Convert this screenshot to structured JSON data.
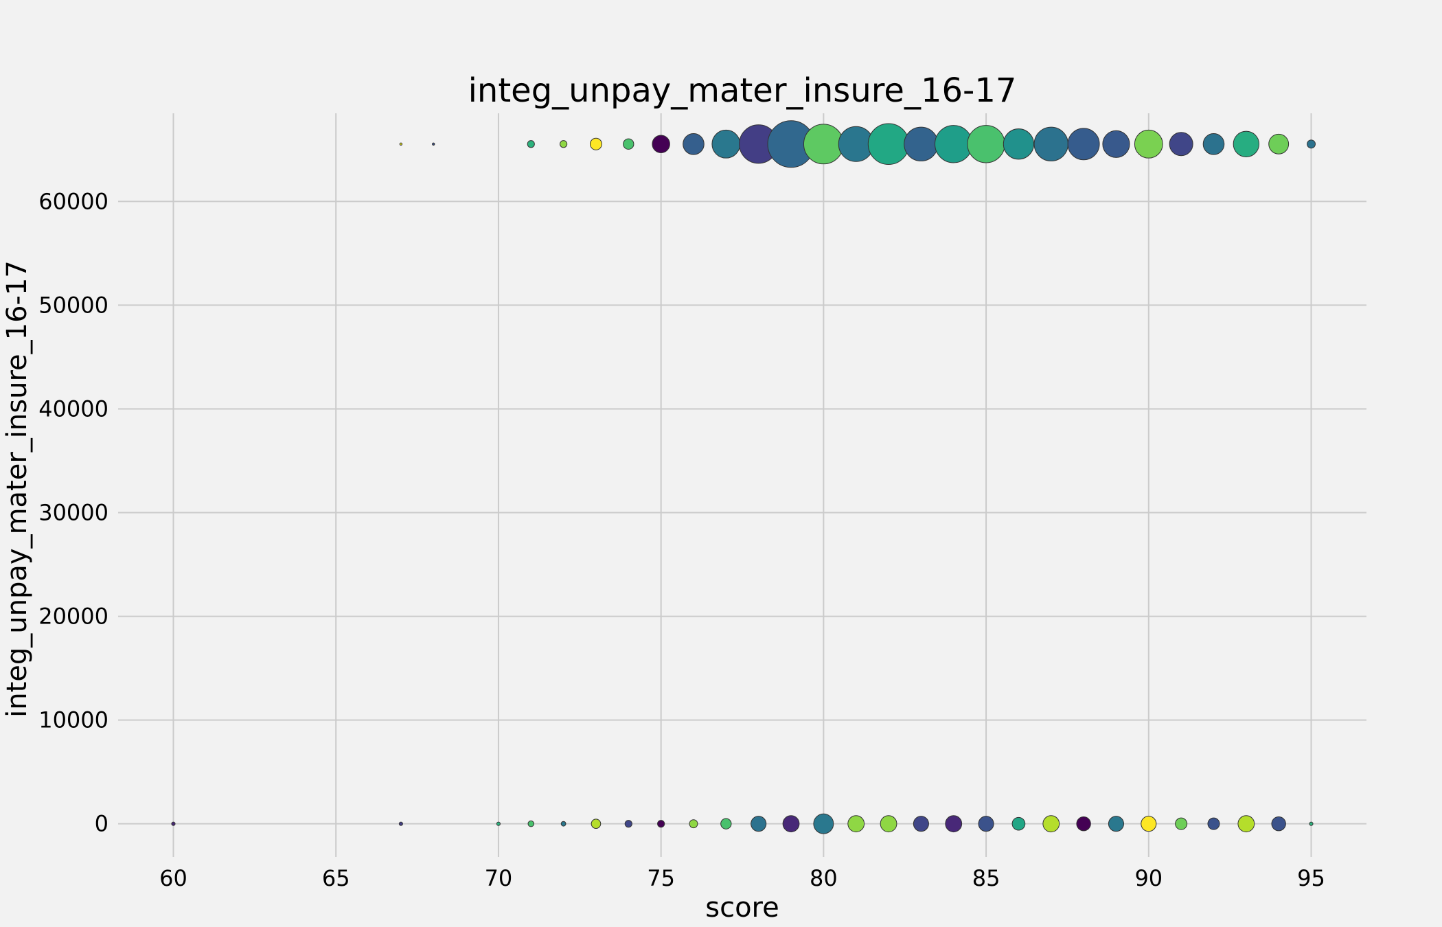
{
  "chart_data": {
    "type": "scatter",
    "title": "integ_unpay_mater_insure_16-17",
    "xlabel": "score",
    "ylabel": "integ_unpay_mater_insure_16-17",
    "xlim": [
      58.3,
      96.7
    ],
    "ylim": [
      -3200,
      68500
    ],
    "xticks": [
      60,
      65,
      70,
      75,
      80,
      85,
      90,
      95
    ],
    "yticks": [
      0,
      10000,
      20000,
      30000,
      40000,
      50000,
      60000
    ],
    "grid": true,
    "legend": "none",
    "colormap": "viridis",
    "series": [
      {
        "y": 65535,
        "points": [
          {
            "x": 67,
            "size": 2,
            "color": "#e6e419"
          },
          {
            "x": 68,
            "size": 2,
            "color": "#3b528b"
          },
          {
            "x": 71,
            "size": 6,
            "color": "#2db27d"
          },
          {
            "x": 72,
            "size": 6,
            "color": "#8fd744"
          },
          {
            "x": 73,
            "size": 10,
            "color": "#fde725"
          },
          {
            "x": 74,
            "size": 9,
            "color": "#4ac16d"
          },
          {
            "x": 75,
            "size": 15,
            "color": "#440154"
          },
          {
            "x": 76,
            "size": 18,
            "color": "#355f8d"
          },
          {
            "x": 77,
            "size": 24,
            "color": "#2a788e"
          },
          {
            "x": 78,
            "size": 33,
            "color": "#433e85"
          },
          {
            "x": 79,
            "size": 40,
            "color": "#31688e"
          },
          {
            "x": 80,
            "size": 34,
            "color": "#5ec962"
          },
          {
            "x": 81,
            "size": 30,
            "color": "#2a768e"
          },
          {
            "x": 82,
            "size": 35,
            "color": "#22a884"
          },
          {
            "x": 83,
            "size": 29,
            "color": "#33638d"
          },
          {
            "x": 84,
            "size": 32,
            "color": "#1f9e89"
          },
          {
            "x": 85,
            "size": 32,
            "color": "#4ac16d"
          },
          {
            "x": 86,
            "size": 26,
            "color": "#21918c"
          },
          {
            "x": 87,
            "size": 29,
            "color": "#2c728e"
          },
          {
            "x": 88,
            "size": 27,
            "color": "#365c8d"
          },
          {
            "x": 89,
            "size": 23,
            "color": "#38598c"
          },
          {
            "x": 90,
            "size": 24,
            "color": "#7ad151"
          },
          {
            "x": 91,
            "size": 20,
            "color": "#404688"
          },
          {
            "x": 92,
            "size": 18,
            "color": "#2c728e"
          },
          {
            "x": 93,
            "size": 22,
            "color": "#27ad81"
          },
          {
            "x": 94,
            "size": 17,
            "color": "#6ece58"
          },
          {
            "x": 95,
            "size": 7,
            "color": "#2c728e"
          }
        ]
      },
      {
        "y": 0,
        "points": [
          {
            "x": 60,
            "size": 3,
            "color": "#482878"
          },
          {
            "x": 67,
            "size": 3,
            "color": "#433e85"
          },
          {
            "x": 70,
            "size": 3,
            "color": "#2db27d"
          },
          {
            "x": 71,
            "size": 5,
            "color": "#4ac16d"
          },
          {
            "x": 72,
            "size": 4,
            "color": "#2a788e"
          },
          {
            "x": 73,
            "size": 8,
            "color": "#b5de2b"
          },
          {
            "x": 74,
            "size": 6,
            "color": "#404688"
          },
          {
            "x": 75,
            "size": 6,
            "color": "#440154"
          },
          {
            "x": 76,
            "size": 7,
            "color": "#8fd744"
          },
          {
            "x": 77,
            "size": 9,
            "color": "#4ac16d"
          },
          {
            "x": 78,
            "size": 13,
            "color": "#2c728e"
          },
          {
            "x": 79,
            "size": 14,
            "color": "#482878"
          },
          {
            "x": 80,
            "size": 17,
            "color": "#2a788e",
            "edge": "#1f9e89"
          },
          {
            "x": 81,
            "size": 14,
            "color": "#8fd744",
            "edge": "#2c728e"
          },
          {
            "x": 82,
            "size": 14,
            "color": "#8fd744"
          },
          {
            "x": 83,
            "size": 13,
            "color": "#404688"
          },
          {
            "x": 84,
            "size": 14,
            "color": "#482878"
          },
          {
            "x": 85,
            "size": 13,
            "color": "#3b528b"
          },
          {
            "x": 86,
            "size": 11,
            "color": "#21a685"
          },
          {
            "x": 87,
            "size": 14,
            "color": "#b5de2b"
          },
          {
            "x": 88,
            "size": 12,
            "color": "#440154"
          },
          {
            "x": 89,
            "size": 13,
            "color": "#2a788e"
          },
          {
            "x": 90,
            "size": 13,
            "color": "#fde725"
          },
          {
            "x": 91,
            "size": 10,
            "color": "#6ece58"
          },
          {
            "x": 92,
            "size": 10,
            "color": "#3b528b"
          },
          {
            "x": 93,
            "size": 14,
            "color": "#b5de2b",
            "edge": "#2a788e"
          },
          {
            "x": 94,
            "size": 12,
            "color": "#3b528b"
          },
          {
            "x": 95,
            "size": 3,
            "color": "#2db27d"
          }
        ]
      }
    ]
  }
}
